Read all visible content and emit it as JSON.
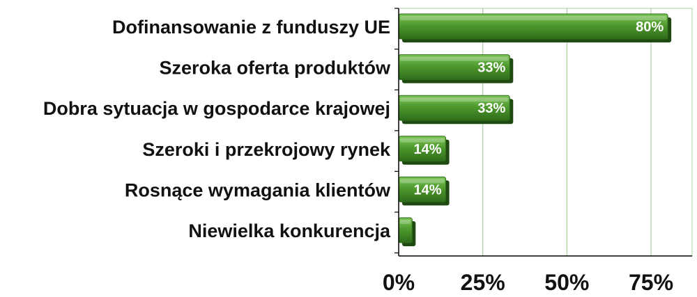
{
  "chart_data": {
    "type": "bar",
    "orientation": "horizontal",
    "categories": [
      "Dofinansowanie z funduszy UE",
      "Szeroka oferta produktów",
      "Dobra sytuacja w gospodarce krajowej",
      "Szeroki i przekrojowy rynek",
      "Rosnące wymagania klientów",
      "Niewielka konkurencja"
    ],
    "values": [
      80,
      33,
      33,
      14,
      14,
      4
    ],
    "data_labels": [
      "80%",
      "33%",
      "33%",
      "14%",
      "14%",
      ""
    ],
    "title": "",
    "xlabel": "",
    "ylabel": "",
    "xlim": [
      0,
      80
    ],
    "x_ticks": [
      0,
      25,
      50,
      75
    ],
    "x_tick_labels": [
      "0%",
      "25%",
      "50%",
      "75%"
    ],
    "grid": "vertical",
    "legend": "none",
    "colors": {
      "bar": "#4f9a2e",
      "bar_light": "#7cc458",
      "bar_dark": "#2f6b1a",
      "grid": "#a9cfa0",
      "axis": "#000000"
    }
  }
}
